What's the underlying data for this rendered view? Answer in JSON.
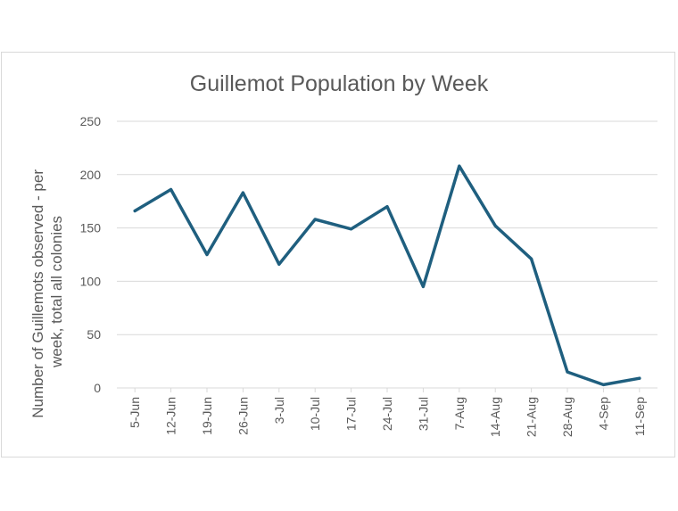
{
  "chart_data": {
    "type": "line",
    "title": "Guillemot Population by Week",
    "ylabel_lines": [
      "Number of Guillemots observed - per",
      "week, total all colonies"
    ],
    "xlabel": "",
    "categories": [
      "5-Jun",
      "12-Jun",
      "19-Jun",
      "26-Jun",
      "3-Jul",
      "10-Jul",
      "17-Jul",
      "24-Jul",
      "31-Jul",
      "7-Aug",
      "14-Aug",
      "21-Aug",
      "28-Aug",
      "4-Sep",
      "11-Sep"
    ],
    "series": [
      {
        "values": [
          166,
          186,
          125,
          183,
          116,
          158,
          149,
          170,
          95,
          208,
          152,
          121,
          15,
          3,
          9
        ]
      }
    ],
    "ylim": [
      0,
      250
    ],
    "yticks": [
      0,
      50,
      100,
      150,
      200,
      250
    ],
    "grid": true,
    "legend": "none",
    "colors": {
      "line": "#1f5f7f",
      "grid": "#d9d9d9",
      "text": "#595959"
    }
  }
}
